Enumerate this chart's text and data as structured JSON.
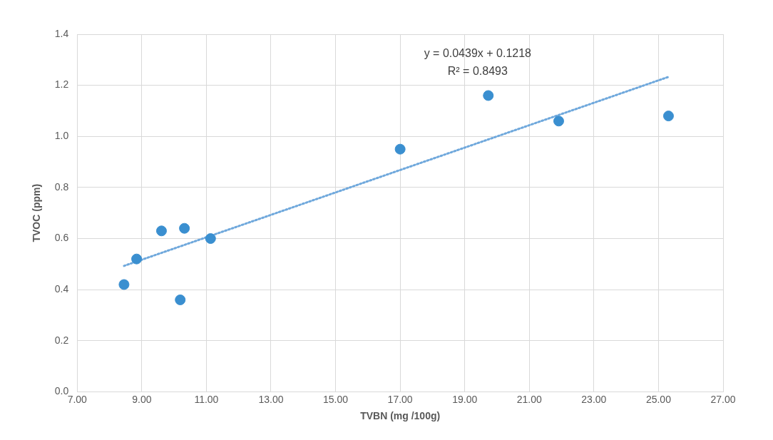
{
  "chart_data": {
    "type": "scatter",
    "xlabel": "TVBN (mg /100g)",
    "ylabel": "TVOC (ppm)",
    "xlim": [
      7,
      27
    ],
    "xticks": [
      {
        "value": 7,
        "label": "7.00"
      },
      {
        "value": 9,
        "label": "9.00"
      },
      {
        "value": 11,
        "label": "11.00"
      },
      {
        "value": 13,
        "label": "13.00"
      },
      {
        "value": 15,
        "label": "15.00"
      },
      {
        "value": 17,
        "label": "17.00"
      },
      {
        "value": 19,
        "label": "19.00"
      },
      {
        "value": 21,
        "label": "21.00"
      },
      {
        "value": 23,
        "label": "23.00"
      },
      {
        "value": 25,
        "label": "25.00"
      },
      {
        "value": 27,
        "label": "27.00"
      }
    ],
    "ylim": [
      0,
      1.4
    ],
    "yticks": [
      {
        "value": 0,
        "label": "0.0"
      },
      {
        "value": 0.2,
        "label": "0.2"
      },
      {
        "value": 0.4,
        "label": "0.4"
      },
      {
        "value": 0.6,
        "label": "0.6"
      },
      {
        "value": 0.8,
        "label": "0.8"
      },
      {
        "value": 1,
        "label": "1.0"
      },
      {
        "value": 1.2,
        "label": "1.2"
      },
      {
        "value": 1.4,
        "label": "1.4"
      }
    ],
    "grid": true,
    "legend": false,
    "marker": "circle",
    "series": [
      {
        "color": "#3a8fd0",
        "x": [
          8.45,
          8.84,
          9.61,
          10.32,
          10.19,
          11.13,
          17.0,
          19.73,
          21.91,
          25.31
        ],
        "values": [
          0.42,
          0.52,
          0.63,
          0.64,
          0.36,
          0.6,
          0.95,
          1.16,
          1.06,
          1.08
        ]
      },
      {
        "type": "line",
        "color": "#6fa8dc",
        "line_style": "dotted",
        "marker": "none",
        "x": [
          8.45,
          25.31
        ],
        "values": [
          0.493,
          1.233
        ]
      }
    ],
    "annotations": [
      "y = 0.0439x + 0.1218",
      "R² = 0.8493"
    ]
  }
}
